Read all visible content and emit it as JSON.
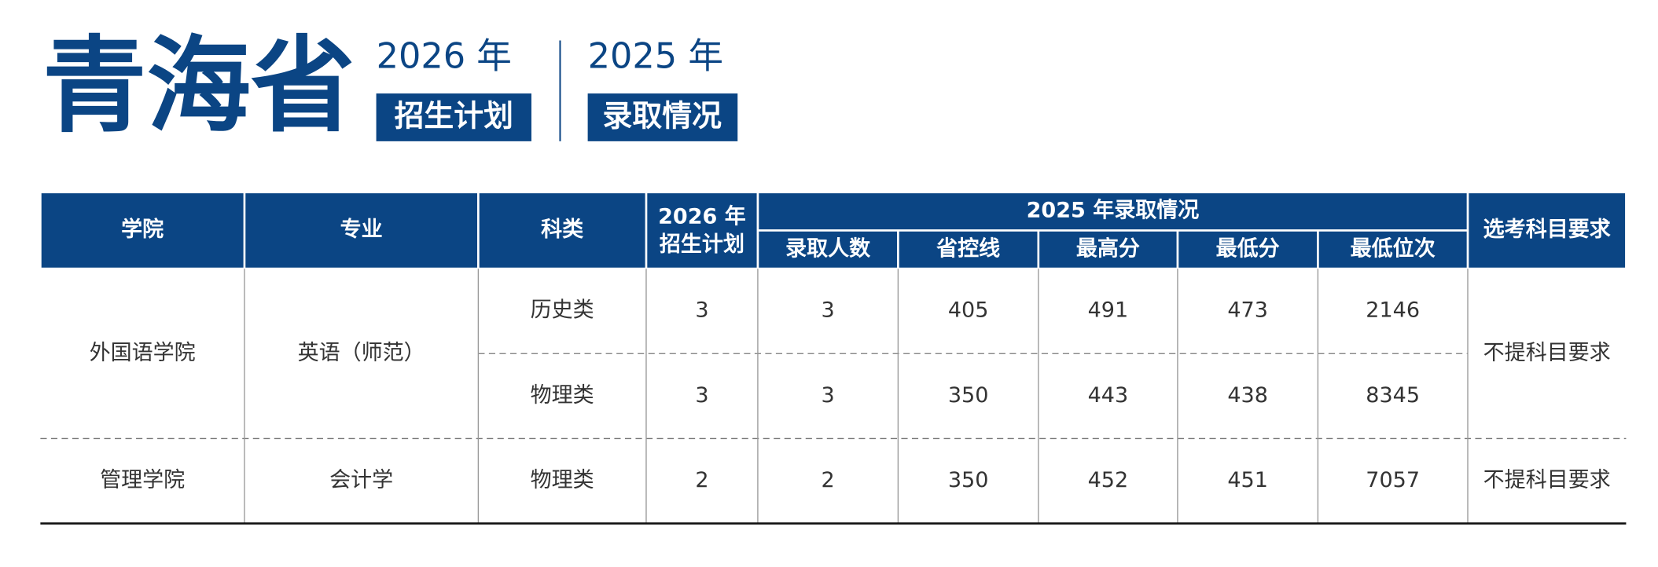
{
  "header": {
    "province": "青海省",
    "plan_year": "2026 年",
    "plan_label": "招生计划",
    "admission_year": "2025 年",
    "admission_label": "录取情况"
  },
  "table": {
    "columns": {
      "college": "学院",
      "major": "专业",
      "category": "科类",
      "plan": [
        "2026 年",
        "招生计划"
      ],
      "group": "2025 年录取情况",
      "sub": [
        "录取人数",
        "省控线",
        "最高分",
        "最低分",
        "最低位次"
      ],
      "requirement": "选考科目要求"
    },
    "rows": [
      {
        "college": "外国语学院",
        "major": "英语（师范）",
        "requirement": "不提科目要求",
        "tracks": [
          {
            "category": "历史类",
            "plan": 3,
            "values": [
              3,
              405,
              491,
              473,
              2146
            ]
          },
          {
            "category": "物理类",
            "plan": 3,
            "values": [
              3,
              350,
              443,
              438,
              8345
            ]
          }
        ]
      },
      {
        "college": "管理学院",
        "major": "会计学",
        "requirement": "不提科目要求",
        "tracks": [
          {
            "category": "物理类",
            "plan": 2,
            "values": [
              2,
              350,
              452,
              451,
              7057
            ]
          }
        ]
      }
    ]
  }
}
